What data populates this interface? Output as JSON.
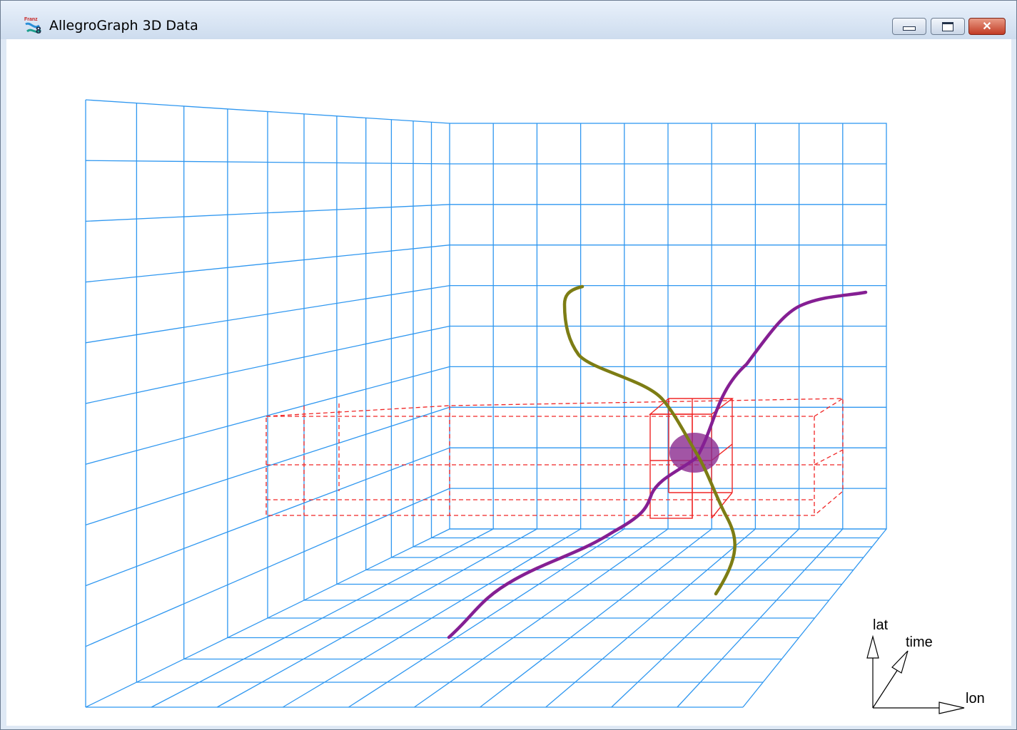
{
  "window": {
    "title": "AllegroGraph 3D Data",
    "icon": "allegrograph-franz-icon",
    "controls": {
      "minimize": "minimize-icon",
      "maximize": "maximize-icon",
      "close": "close-icon"
    }
  },
  "scene": {
    "grid_color": "#2f97f0",
    "region_color": "#f02626",
    "track_purple_color": "#851f93",
    "track_olive_color": "#7d7d14",
    "sphere_color": "#8b2a8e",
    "axes": {
      "vertical": "lat",
      "depth": "time",
      "horizontal": "lon"
    }
  }
}
